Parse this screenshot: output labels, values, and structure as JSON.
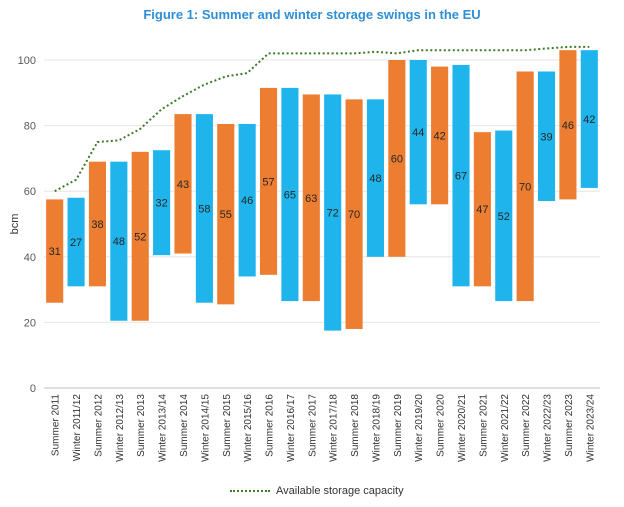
{
  "chart_data": {
    "type": "bar",
    "subtype": "floating-range",
    "title": "Figure 1: Summer and winter storage swings in the EU",
    "ylabel": "bcm",
    "ylim": [
      0,
      100
    ],
    "yticks": [
      0,
      20,
      40,
      60,
      80,
      100
    ],
    "colors": {
      "summer": "#ed7d31",
      "winter": "#1fb4ec",
      "capacity": "#3d7a2a"
    },
    "categories": [
      "Summer 2011",
      "Winter 2011/12",
      "Summer 2012",
      "Winter 2012/13",
      "Summer 2013",
      "Winter 2013/14",
      "Summer 2014",
      "Winter 2014/15",
      "Summer 2015",
      "Winter 2015/16",
      "Summer 2016",
      "Winter 2016/17",
      "Summer 2017",
      "Winter 2017/18",
      "Summer 2018",
      "Winter 2018/19",
      "Summer 2019",
      "Winter 2019/20",
      "Summer 2020",
      "Winter 2020/21",
      "Summer 2021",
      "Winter 2021/22",
      "Summer 2022",
      "Winter 2022/23",
      "Summer 2023",
      "Winter 2023/24"
    ],
    "season": [
      "summer",
      "winter",
      "summer",
      "winter",
      "summer",
      "winter",
      "summer",
      "winter",
      "summer",
      "winter",
      "summer",
      "winter",
      "summer",
      "winter",
      "summer",
      "winter",
      "summer",
      "winter",
      "summer",
      "winter",
      "summer",
      "winter",
      "summer",
      "winter",
      "summer",
      "winter"
    ],
    "low": [
      26,
      31,
      31,
      20.5,
      20.5,
      40.5,
      41,
      26,
      25.5,
      34,
      34.5,
      26.5,
      26.5,
      17.5,
      18,
      40,
      40,
      56,
      56,
      31,
      31,
      26.5,
      26.5,
      57,
      57.5,
      61
    ],
    "high": [
      57.5,
      58,
      69,
      69,
      72,
      72.5,
      83.5,
      83.5,
      80.5,
      80.5,
      91.5,
      91.5,
      89.5,
      89.5,
      88,
      88,
      100,
      100,
      98,
      98.5,
      78,
      78.5,
      96.5,
      96.5,
      103,
      103
    ],
    "labels": [
      31,
      27,
      38,
      48,
      52,
      32,
      43,
      58,
      55,
      46,
      57,
      65,
      63,
      72,
      70,
      48,
      60,
      44,
      42,
      67,
      47,
      52,
      70,
      39,
      46,
      42
    ],
    "capacity_series": {
      "name": "Available storage capacity",
      "values": [
        60,
        63.5,
        75,
        75.5,
        79,
        85,
        89,
        92.5,
        95,
        96,
        102,
        102,
        102,
        102,
        102,
        102.5,
        102,
        103,
        103,
        103,
        103,
        103,
        103,
        103.5,
        104,
        104
      ]
    },
    "legend_position": "bottom-center"
  }
}
